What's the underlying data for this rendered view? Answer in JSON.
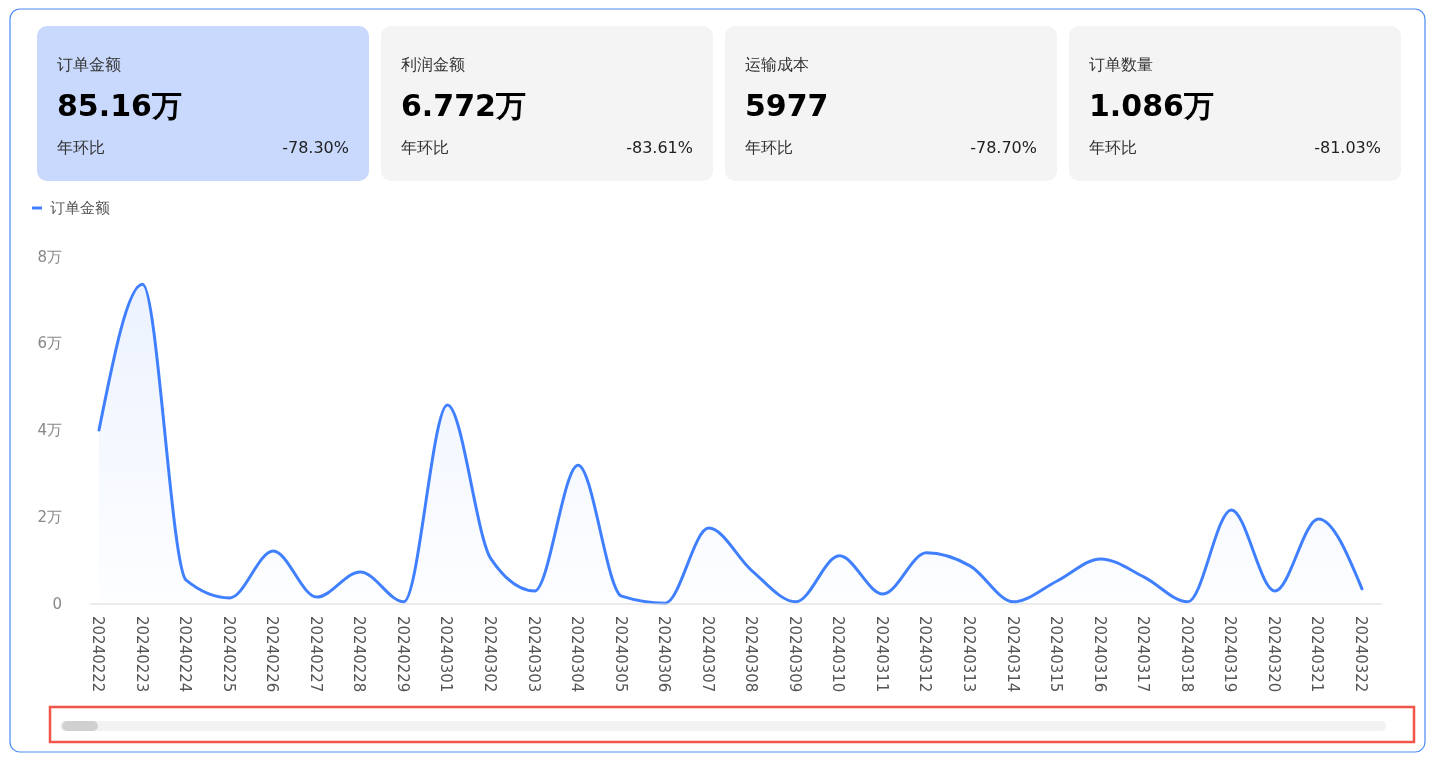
{
  "chart_data": [
    {
      "type": "other",
      "title": "订单金额",
      "annotations": [
        "85.16万",
        "年环比",
        "-78.30%"
      ]
    },
    {
      "type": "other",
      "title": "利润金额",
      "annotations": [
        "6.772万",
        "年环比",
        "-83.61%"
      ]
    },
    {
      "type": "other",
      "title": "运输成本",
      "annotations": [
        "5977",
        "年环比",
        "-78.70%"
      ]
    },
    {
      "type": "other",
      "title": "订单数量",
      "annotations": [
        "1.086万",
        "年环比",
        "-81.03%"
      ]
    },
    {
      "type": "area",
      "categories": [
        "20240222",
        "20240223",
        "20240224",
        "20240225",
        "20240226",
        "20240227",
        "20240228",
        "20240229",
        "20240301",
        "20240302",
        "20240303",
        "20240304",
        "20240305",
        "20240306",
        "20240307",
        "20240308",
        "20240309",
        "20240310",
        "20240311",
        "20240312",
        "20240313",
        "20240314",
        "20240315",
        "20240316",
        "20240317",
        "20240318",
        "20240319",
        "20240320",
        "20240321",
        "20240322"
      ],
      "series": [
        {
          "name": "订单金额",
          "color": "#4080ff",
          "values": [
            4.01,
            7.37,
            0.55,
            0.14,
            1.22,
            0.16,
            0.74,
            0.05,
            4.59,
            1.04,
            0.3,
            3.2,
            0.18,
            0.02,
            1.75,
            0.76,
            0.05,
            1.11,
            0.23,
            1.18,
            0.88,
            0.05,
            0.53,
            1.04,
            0.62,
            0.05,
            2.17,
            0.3,
            1.96,
            0.35
          ]
        }
      ],
      "ylim": [
        0,
        8
      ],
      "yticks": [
        0,
        {
          "value": 2,
          "label": "2万"
        },
        {
          "value": 4,
          "label": "4万"
        },
        {
          "value": 6,
          "label": "6万"
        },
        {
          "value": 8,
          "label": "8万"
        }
      ],
      "legend": "top left",
      "marker": "none",
      "line_style": "solid"
    }
  ]
}
